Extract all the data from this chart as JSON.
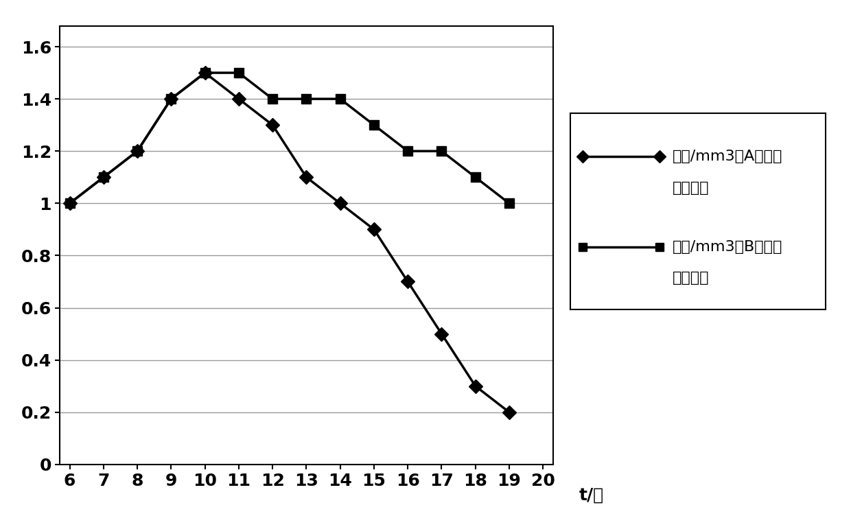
{
  "series_A": {
    "x": [
      6,
      7,
      8,
      9,
      10,
      11,
      12,
      13,
      14,
      15,
      16,
      17,
      18,
      19
    ],
    "y": [
      1.0,
      1.1,
      1.2,
      1.4,
      1.5,
      1.4,
      1.3,
      1.1,
      1.0,
      0.9,
      0.7,
      0.5,
      0.3,
      0.2
    ],
    "label_line1": "个数/mm3（A组）单",
    "label_line2": "位：十万",
    "marker": "D",
    "color": "#000000",
    "linewidth": 2.5,
    "markersize": 10
  },
  "series_B": {
    "x": [
      6,
      7,
      8,
      9,
      10,
      11,
      12,
      13,
      14,
      15,
      16,
      17,
      18,
      19
    ],
    "y": [
      1.0,
      1.1,
      1.2,
      1.4,
      1.5,
      1.5,
      1.4,
      1.4,
      1.4,
      1.3,
      1.2,
      1.2,
      1.1,
      1.0
    ],
    "label_line1": "个数/mm3（B组）单",
    "label_line2": "位：十万",
    "marker": "s",
    "color": "#000000",
    "linewidth": 2.5,
    "markersize": 10
  },
  "xlim": [
    5.7,
    20.3
  ],
  "ylim": [
    0,
    1.68
  ],
  "xticks": [
    6,
    7,
    8,
    9,
    10,
    11,
    12,
    13,
    14,
    15,
    16,
    17,
    18,
    19,
    20
  ],
  "yticks": [
    0,
    0.2,
    0.4,
    0.6,
    0.8,
    1.0,
    1.2,
    1.4,
    1.6
  ],
  "xlabel": "t/天",
  "background_color": "#ffffff",
  "figsize": [
    12.4,
    7.52
  ],
  "dpi": 100,
  "tick_fontsize": 18,
  "xlabel_fontsize": 18,
  "legend_fontsize": 16
}
